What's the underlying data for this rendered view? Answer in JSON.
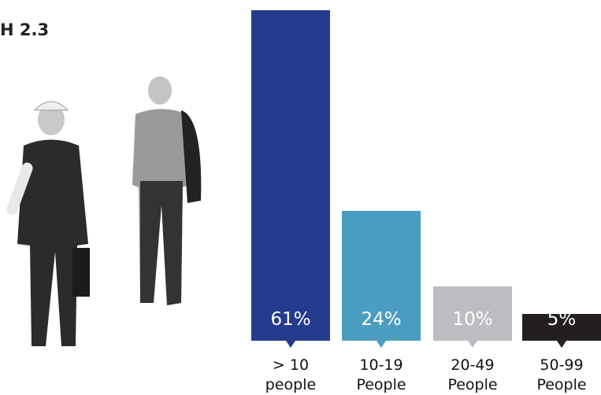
{
  "chart_data": {
    "type": "bar",
    "title": "H 2.3",
    "categories": [
      "> 10 people",
      "10-19 People",
      "20-49 People",
      "50-99 People"
    ],
    "values": [
      61,
      24,
      10,
      5
    ],
    "value_labels": [
      "61%",
      "24%",
      "10%",
      "5%"
    ],
    "colors": [
      "#253c8e",
      "#4b9dc0",
      "#bcbdc0",
      "#231f20"
    ]
  }
}
